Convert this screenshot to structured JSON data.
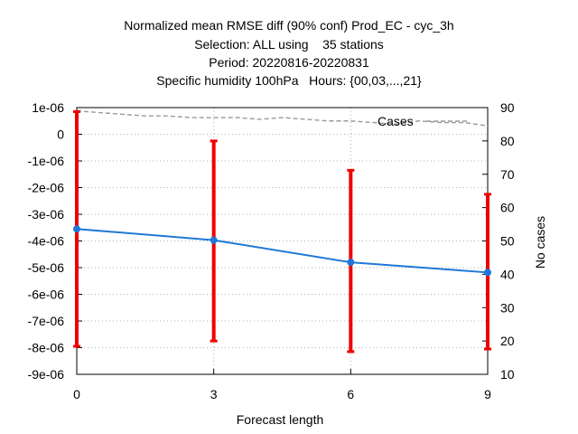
{
  "chart_data": {
    "type": "line",
    "title_lines": [
      "Normalized mean RMSE diff (90% conf) Prod_EC - cyc_3h",
      "Selection: ALL using    35 stations",
      "Period: 20220816-20220831",
      "Specific humidity 100hPa   Hours: {00,03,...,21}"
    ],
    "xlabel": "Forecast length",
    "ylabel": "",
    "y2label": "No cases",
    "x_ticks": [
      "0",
      "3",
      "6",
      "9"
    ],
    "xlim": [
      0,
      9
    ],
    "y_ticks": [
      "1e-06",
      "0",
      "-1e-06",
      "-2e-06",
      "-3e-06",
      "-4e-06",
      "-5e-06",
      "-6e-06",
      "-7e-06",
      "-8e-06",
      "-9e-06"
    ],
    "y_tick_values": [
      1e-06,
      0,
      -1e-06,
      -2e-06,
      -3e-06,
      -4e-06,
      -5e-06,
      -6e-06,
      -7e-06,
      -8e-06,
      -9e-06
    ],
    "ylim": [
      -9e-06,
      1e-06
    ],
    "y2_ticks": [
      "90",
      "80",
      "70",
      "60",
      "50",
      "40",
      "30",
      "20",
      "10"
    ],
    "y2_tick_values": [
      90,
      80,
      70,
      60,
      50,
      40,
      30,
      20,
      10
    ],
    "y2lim": [
      10,
      90
    ],
    "grid": true,
    "series": [
      {
        "kind": "mean",
        "color": "#1f78d8",
        "x": [
          0,
          3,
          6,
          9
        ],
        "y": [
          -3.55e-06,
          -3.97e-06,
          -4.8e-06,
          -5.18e-06
        ]
      },
      {
        "kind": "conf90",
        "color": "#ee0000",
        "x": [
          0,
          3,
          6,
          9
        ],
        "low": [
          -7.95e-06,
          -7.75e-06,
          -8.15e-06,
          -8.05e-06
        ],
        "high": [
          8.5e-07,
          -2.5e-07,
          -1.35e-06,
          -2.25e-06
        ]
      },
      {
        "name": "Cases",
        "kind": "cases",
        "axis": "right",
        "color": "#999999",
        "x": [
          0,
          0.5,
          1,
          1.5,
          2,
          2.5,
          3,
          3.5,
          4,
          4.5,
          5,
          5.5,
          6,
          6.5,
          7,
          7.5,
          8,
          8.5,
          9
        ],
        "y": [
          89,
          88.5,
          88,
          87.5,
          87.5,
          87,
          87,
          87,
          86.5,
          87,
          86.5,
          86,
          86,
          85.5,
          85,
          86,
          85.5,
          85.5,
          84.5
        ]
      }
    ],
    "legend": {
      "label": "Cases",
      "placement": "top-right"
    }
  }
}
